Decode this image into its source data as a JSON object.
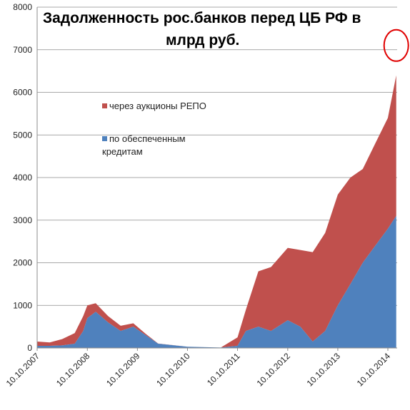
{
  "chart_data": {
    "type": "area",
    "title_line1": "Задолженность рос.банков перед ЦБ РФ в",
    "title_line2": "млрд руб.",
    "xlabel": "",
    "ylabel": "",
    "ylim": [
      0,
      8000
    ],
    "yticks": [
      "0",
      "1000",
      "2000",
      "3000",
      "4000",
      "5000",
      "6000",
      "7000",
      "8000"
    ],
    "xticks": [
      "10.10.2007",
      "10.10.2008",
      "10.10.2009",
      "10.10.2010",
      "10.10.2011",
      "10.10.2012",
      "10.10.2013",
      "10.10.2014"
    ],
    "grid": true,
    "legend_position": "upper-left inside plot",
    "stacking": "stacked",
    "series": [
      {
        "name": "через аукционы РЕПО",
        "color": "#c0504d",
        "values": [
          [
            "2007-10-10",
            100
          ],
          [
            "2008-01-10",
            80
          ],
          [
            "2008-04-10",
            150
          ],
          [
            "2008-07-10",
            250
          ],
          [
            "2008-09-10",
            350
          ],
          [
            "2008-10-10",
            300
          ],
          [
            "2008-12-10",
            200
          ],
          [
            "2009-03-10",
            150
          ],
          [
            "2009-06-10",
            120
          ],
          [
            "2009-09-10",
            80
          ],
          [
            "2009-12-10",
            30
          ],
          [
            "2010-03-10",
            5
          ],
          [
            "2010-10-10",
            0
          ],
          [
            "2011-06-10",
            0
          ],
          [
            "2011-10-10",
            200
          ],
          [
            "2011-12-10",
            500
          ],
          [
            "2012-03-10",
            1300
          ],
          [
            "2012-06-10",
            1500
          ],
          [
            "2012-10-10",
            1700
          ],
          [
            "2013-01-10",
            1800
          ],
          [
            "2013-04-10",
            2100
          ],
          [
            "2013-07-10",
            2300
          ],
          [
            "2013-10-10",
            2600
          ],
          [
            "2014-01-10",
            2500
          ],
          [
            "2014-04-10",
            2200
          ],
          [
            "2014-07-10",
            2400
          ],
          [
            "2014-10-10",
            2600
          ],
          [
            "2014-12-10",
            3300
          ]
        ]
      },
      {
        "name": "по обеспеченным кредитам",
        "color": "#4f81bd",
        "values": [
          [
            "2007-10-10",
            50
          ],
          [
            "2008-01-10",
            50
          ],
          [
            "2008-04-10",
            60
          ],
          [
            "2008-07-10",
            100
          ],
          [
            "2008-09-10",
            400
          ],
          [
            "2008-10-10",
            700
          ],
          [
            "2008-12-10",
            850
          ],
          [
            "2009-03-10",
            600
          ],
          [
            "2009-06-10",
            400
          ],
          [
            "2009-09-10",
            500
          ],
          [
            "2009-12-10",
            300
          ],
          [
            "2010-03-10",
            100
          ],
          [
            "2010-10-10",
            30
          ],
          [
            "2011-06-10",
            10
          ],
          [
            "2011-10-10",
            50
          ],
          [
            "2011-12-10",
            400
          ],
          [
            "2012-03-10",
            500
          ],
          [
            "2012-06-10",
            400
          ],
          [
            "2012-10-10",
            650
          ],
          [
            "2013-01-10",
            500
          ],
          [
            "2013-04-10",
            150
          ],
          [
            "2013-07-10",
            400
          ],
          [
            "2013-10-10",
            1000
          ],
          [
            "2014-01-10",
            1500
          ],
          [
            "2014-04-10",
            2000
          ],
          [
            "2014-07-10",
            2400
          ],
          [
            "2014-10-10",
            2800
          ],
          [
            "2014-12-10",
            3100
          ]
        ]
      }
    ],
    "annotation": {
      "shape": "circle",
      "color": "#e00000",
      "target_date": "2014-12-10",
      "target_value": 7100
    }
  }
}
